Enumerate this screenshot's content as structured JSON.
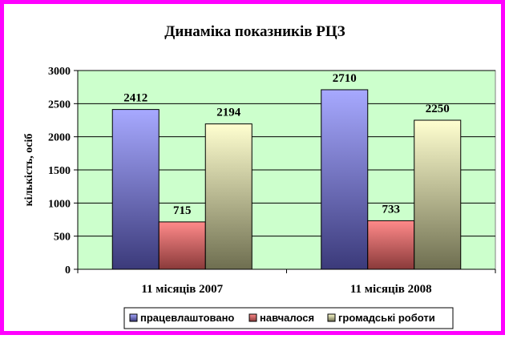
{
  "chart_data": {
    "type": "bar",
    "title": "Динаміка показників РЦЗ",
    "ylabel": "кількість, осіб",
    "xlabel": "",
    "categories": [
      "11 місяців 2007",
      "11 місяців 2008"
    ],
    "series": [
      {
        "name": "працевлаштовано",
        "values": [
          2412,
          2710
        ],
        "labels": [
          "2412",
          "2710"
        ],
        "color_top": "#a7a9ff",
        "color_bottom": "#3b3a7a"
      },
      {
        "name": "навчалося",
        "values": [
          715,
          733
        ],
        "labels": [
          "715",
          "733"
        ],
        "color_top": "#ff8a8a",
        "color_bottom": "#8a3a3a"
      },
      {
        "name": "громадські роботи",
        "values": [
          2194,
          2250
        ],
        "labels": [
          "2194",
          "2250"
        ],
        "color_top": "#ffffd0",
        "color_bottom": "#6e6e50"
      }
    ],
    "ylim": [
      0,
      3000
    ],
    "yticks": [
      "0",
      "500",
      "1000",
      "1500",
      "2000",
      "2500",
      "3000"
    ],
    "grid": true,
    "plot_background": "#ccffcc",
    "legend_position": "bottom"
  }
}
